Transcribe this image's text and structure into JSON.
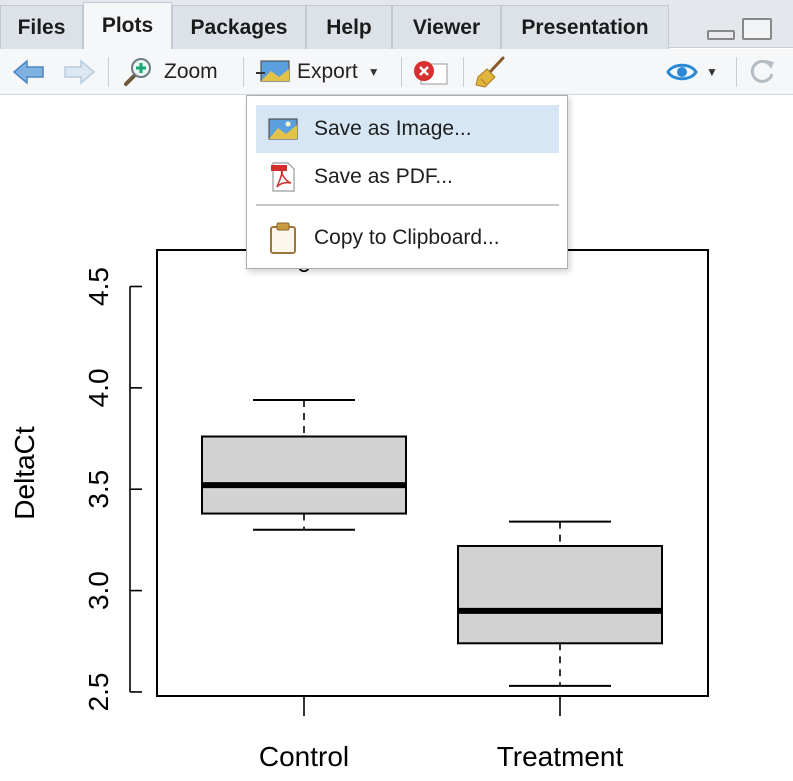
{
  "tabs": [
    {
      "label": "Files",
      "active": false
    },
    {
      "label": "Plots",
      "active": true
    },
    {
      "label": "Packages",
      "active": false
    },
    {
      "label": "Help",
      "active": false
    },
    {
      "label": "Viewer",
      "active": false
    },
    {
      "label": "Presentation",
      "active": false
    }
  ],
  "toolbar": {
    "zoom_label": "Zoom",
    "export_label": "Export"
  },
  "export_menu": {
    "items": [
      {
        "label": "Save as Image...",
        "icon": "image-icon",
        "highlighted": true
      },
      {
        "label": "Save as PDF...",
        "icon": "pdf-icon",
        "highlighted": false
      },
      {
        "label": "Copy to Clipboard...",
        "icon": "clipboard-icon",
        "highlighted": false
      }
    ]
  },
  "colors": {
    "accent": "#2a88d8",
    "menu_highlight": "#d6e6f5",
    "box_fill": "#d3d3d3"
  },
  "chart_data": {
    "type": "boxplot",
    "title": "",
    "xlabel": "",
    "ylabel": "DeltaCt",
    "categories": [
      "Control",
      "Treatment"
    ],
    "ylim": [
      2.48,
      4.68
    ],
    "yticks": [
      "2.5",
      "3.0",
      "3.5",
      "4.0",
      "4.5"
    ],
    "ytick_values": [
      2.5,
      3.0,
      3.5,
      4.0,
      4.5
    ],
    "boxes": [
      {
        "name": "Control",
        "min": 3.3,
        "q1": 3.38,
        "median": 3.52,
        "q3": 3.76,
        "max": 3.94,
        "outliers": [
          4.6
        ]
      },
      {
        "name": "Treatment",
        "min": 2.53,
        "q1": 2.74,
        "median": 2.9,
        "q3": 3.22,
        "max": 3.34,
        "outliers": []
      }
    ]
  }
}
